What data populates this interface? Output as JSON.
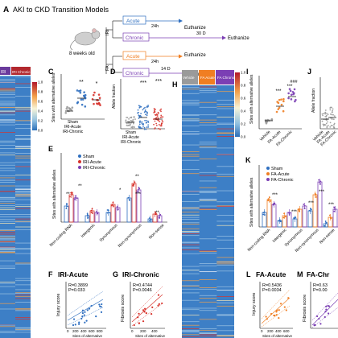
{
  "colors": {
    "blue": "#2f6fc0",
    "red": "#d7312a",
    "purple": "#7b3fb4",
    "orange": "#f07e22",
    "heat_blue": "#3d7fc6",
    "heat_mid": "#9fc4e4",
    "grey": "#9a9a9a",
    "black": "#000000"
  },
  "figure": {
    "title_letter": "A",
    "title": "AKI to CKD Transition Models",
    "mouse_age": "8 weeks old",
    "iri_label": "IRI",
    "fa_label": "FA",
    "acute_label": "Acute",
    "chronic_label": "Chronic",
    "h24": "24h",
    "d30": "30 D",
    "d14": "14 D",
    "euthanize": "Euthanize"
  },
  "heatmap_left": {
    "col_labels": [
      "IRI",
      "IRI Chronic"
    ]
  },
  "heatmap_right": {
    "letter": "H",
    "col_labels": [
      "Vehicle",
      "FA Acute",
      "FA Chronic"
    ]
  },
  "scale": {
    "ticks": [
      "1.0",
      "0.8",
      "0.6",
      "0.4",
      "0.2",
      "0.0"
    ]
  },
  "panels": {
    "C": {
      "letter": "C",
      "ylabel": "Sites with alternative alleles",
      "groups": [
        "Sham",
        "IRI-Acute",
        "IRI-Chronic"
      ],
      "stars": [
        "**",
        "*"
      ]
    },
    "D": {
      "letter": "D",
      "ylabel": "Allele fraction",
      "groups": [
        "Sham",
        "IRI-Acute",
        "IRI-Chronic"
      ],
      "stars": [
        "***",
        "***"
      ]
    },
    "E": {
      "letter": "E",
      "ylabel": "Sites with alternative alleles",
      "legend": [
        "Sham",
        "IRI-Acute",
        "IRI-Chronic"
      ],
      "categories": [
        "Non-coding RNA",
        "Intergenic",
        "Synonymous",
        "Non-synonymous",
        "Non-sense"
      ],
      "stars": [
        "**",
        "**",
        "*",
        "**",
        "***",
        "**"
      ]
    },
    "F": {
      "letter": "F",
      "title": "IRI-Acute",
      "ylabel": "Injury score",
      "xlabel": "Sites of alternative",
      "stat1": "R=0.3899",
      "stat2": "P=0.033",
      "ticks": [
        "0",
        "200",
        "400",
        "600",
        "800"
      ]
    },
    "G": {
      "letter": "G",
      "title": "IRI-Chronic",
      "ylabel": "Fibrosis score",
      "xlabel": "Sites of alternative",
      "stat1": "R=0.4744",
      "stat2": "P=0.0046",
      "ticks": [
        "0",
        "200",
        "400"
      ]
    },
    "I": {
      "letter": "I",
      "ylabel": "Sites with alternative alleles",
      "groups": [
        "Vehicle",
        "FA-Acute",
        "FA-Chronic"
      ],
      "stars": [
        "###",
        "***",
        "***"
      ]
    },
    "J": {
      "letter": "J",
      "ylabel": "Allele fraction",
      "groups": [
        "Vehicle",
        "FA-Acute",
        "FA-Chronic"
      ]
    },
    "K": {
      "letter": "K",
      "ylabel": "Sites with alternative alleles",
      "legend": [
        "Sham",
        "FA-Acute",
        "FA-Chronic"
      ],
      "categories": [
        "Non-coding RNA",
        "Intergenic",
        "Synonymous",
        "Non-synonymous",
        "Non-sense"
      ],
      "stars": [
        "***",
        "***",
        "***",
        "***",
        "***"
      ]
    },
    "L": {
      "letter": "L",
      "title": "FA-Acute",
      "ylabel": "Injury score",
      "xlabel": "Sites of alternative",
      "stat1": "R=0.5436",
      "stat2": "P=0.0034",
      "ticks": [
        "0",
        "200",
        "400",
        "600"
      ]
    },
    "M": {
      "letter": "M",
      "title": "FA-Chr",
      "ylabel": "Fibrosis score",
      "stat1": "R=0.63",
      "stat2": "P=0.00"
    }
  }
}
